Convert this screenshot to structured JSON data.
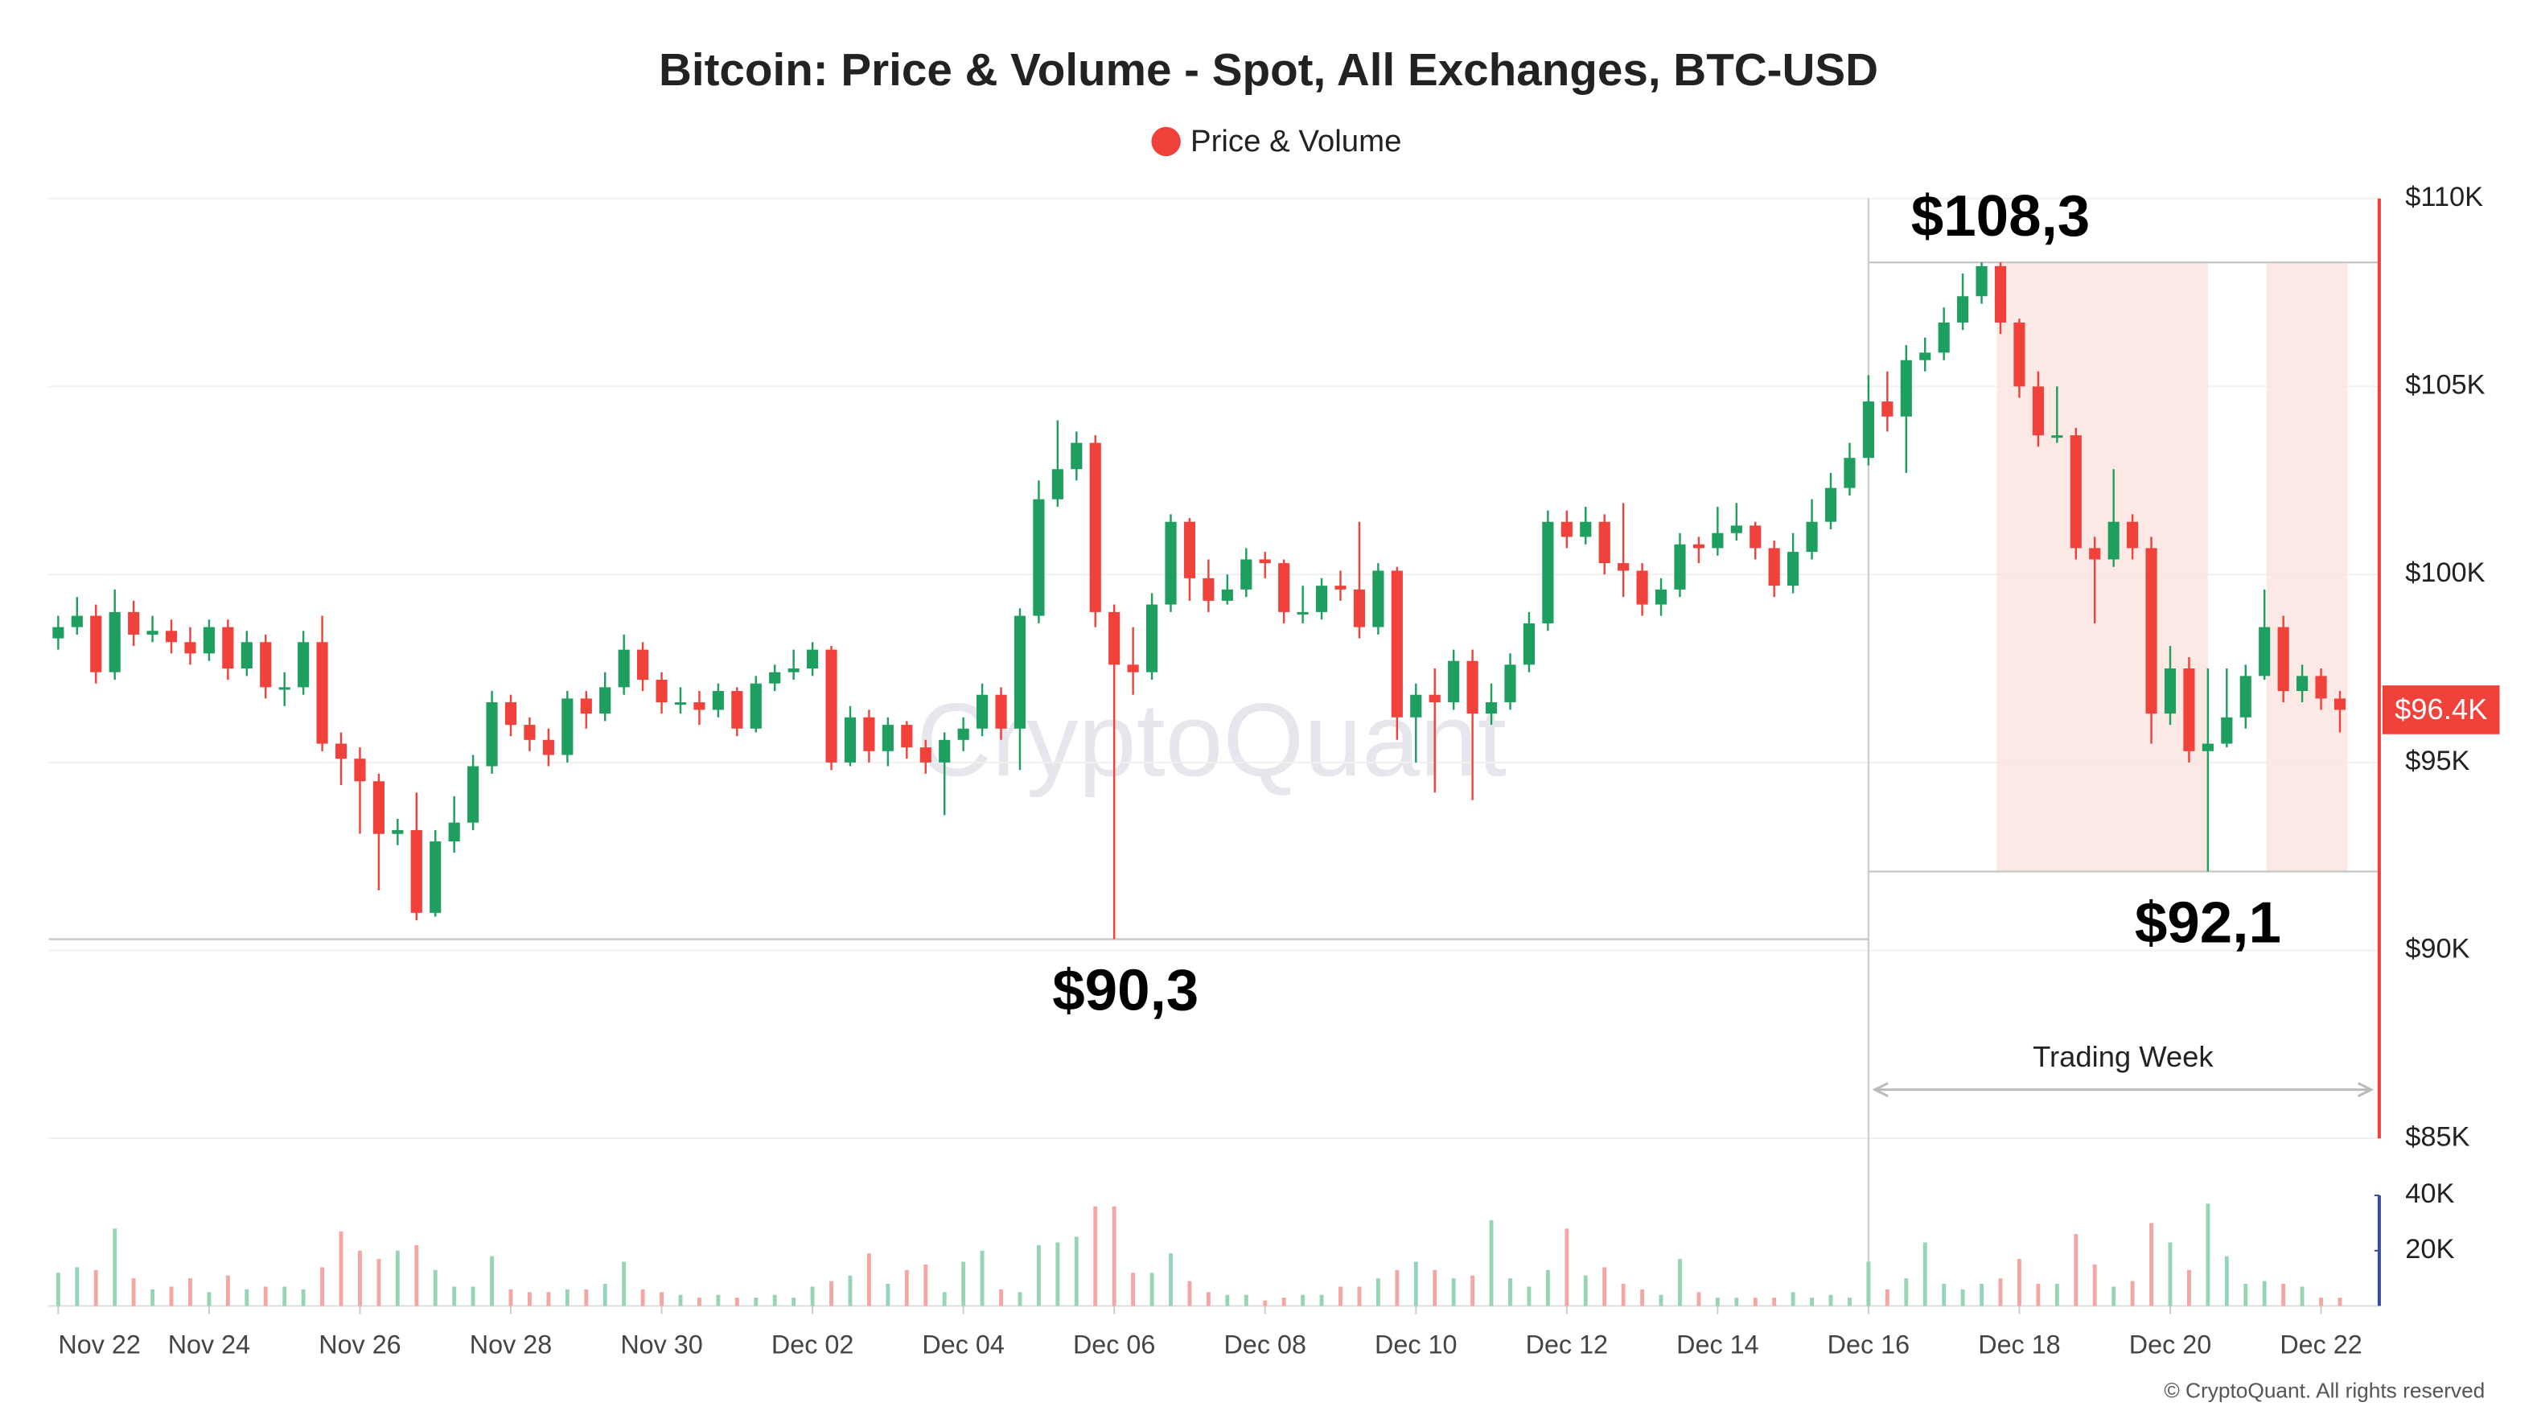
{
  "chart_data": {
    "type": "candlestick",
    "title": "Bitcoin: Price & Volume - Spot, All Exchanges, BTC-USD",
    "legend": {
      "name": "Price & Volume",
      "color": "#f0413a"
    },
    "up_color": "#1e9e5f",
    "down_color": "#f0413a",
    "volume_up_color": "#96d4b6",
    "volume_down_color": "#f5a5a3",
    "open": [
      98.3,
      98.6,
      98.9,
      97.4,
      99.0,
      98.4,
      98.5,
      98.2,
      97.9,
      98.6,
      97.5,
      98.2,
      97.0,
      97.0,
      98.2,
      95.5,
      95.1,
      94.5,
      93.1,
      93.2,
      91.0,
      92.9,
      93.4,
      94.9,
      96.6,
      96.0,
      95.6,
      95.2,
      96.7,
      96.3,
      97.0,
      98.0,
      97.2,
      96.6,
      96.6,
      96.4,
      96.9,
      95.9,
      97.1,
      97.4,
      97.5,
      98.0,
      95.0,
      96.2,
      95.3,
      96.0,
      95.4,
      95.0,
      95.6,
      95.9,
      96.8,
      95.9,
      98.9,
      102.0,
      102.8,
      103.5,
      99.0,
      97.6,
      97.4,
      99.2,
      101.4,
      99.9,
      99.3,
      99.6,
      100.4,
      100.3,
      99.0,
      99.0,
      99.7,
      99.6,
      98.6,
      100.1,
      96.2,
      96.8,
      96.6,
      97.7,
      96.3,
      96.6,
      97.6,
      98.7,
      101.4,
      101.0,
      101.4,
      100.3,
      100.1,
      99.2,
      99.6,
      100.8,
      100.7,
      101.1,
      101.3,
      100.7,
      99.7,
      100.6,
      101.4,
      102.3,
      103.1,
      104.6,
      104.2,
      105.7,
      105.9,
      106.7,
      107.4,
      108.2,
      106.7,
      105.0,
      103.7,
      103.7,
      100.7,
      100.4,
      101.4,
      100.7,
      96.3,
      97.5,
      95.3,
      95.5,
      96.2,
      97.3,
      98.6,
      96.9,
      97.3,
      96.7
    ],
    "high": [
      98.9,
      99.4,
      99.2,
      99.6,
      99.3,
      98.9,
      98.8,
      98.6,
      98.8,
      98.8,
      98.5,
      98.4,
      97.4,
      98.5,
      98.9,
      95.8,
      95.4,
      94.7,
      93.5,
      94.2,
      93.2,
      94.1,
      95.2,
      96.9,
      96.8,
      96.2,
      95.9,
      96.9,
      96.9,
      97.4,
      98.4,
      98.2,
      97.4,
      97.0,
      96.9,
      97.1,
      97.0,
      97.3,
      97.6,
      98.0,
      98.2,
      98.1,
      96.5,
      96.4,
      96.2,
      96.1,
      95.6,
      95.8,
      96.2,
      97.1,
      97.0,
      99.1,
      102.5,
      104.1,
      103.8,
      103.7,
      99.2,
      98.6,
      99.5,
      101.6,
      101.5,
      100.4,
      100.0,
      100.7,
      100.6,
      100.4,
      99.7,
      99.9,
      100.1,
      101.4,
      100.3,
      100.2,
      97.1,
      97.5,
      98.0,
      98.0,
      97.1,
      97.9,
      99.0,
      101.7,
      101.7,
      101.8,
      101.6,
      101.9,
      100.3,
      99.9,
      101.1,
      101.0,
      101.8,
      101.9,
      101.4,
      100.9,
      101.1,
      102.0,
      102.7,
      103.5,
      105.3,
      105.4,
      106.1,
      106.3,
      107.1,
      108.0,
      108.3,
      108.3,
      106.8,
      105.4,
      105.0,
      103.9,
      101.0,
      102.8,
      101.6,
      101.0,
      98.1,
      97.8,
      97.5,
      97.5,
      97.6,
      99.6,
      98.9,
      97.6,
      97.5,
      96.9
    ],
    "low": [
      98.0,
      98.4,
      97.1,
      97.2,
      98.1,
      98.2,
      97.9,
      97.6,
      97.7,
      97.2,
      97.3,
      96.7,
      96.5,
      96.8,
      95.3,
      94.4,
      93.1,
      91.6,
      92.8,
      90.8,
      90.9,
      92.6,
      93.2,
      94.7,
      95.7,
      95.3,
      94.9,
      95.0,
      95.9,
      96.1,
      96.8,
      96.9,
      96.3,
      96.3,
      96.0,
      96.2,
      95.7,
      95.8,
      96.9,
      97.2,
      97.3,
      94.8,
      94.9,
      95.0,
      94.9,
      95.1,
      94.7,
      93.6,
      95.3,
      95.7,
      95.6,
      94.8,
      98.7,
      101.8,
      102.5,
      98.6,
      90.3,
      96.8,
      97.2,
      99.0,
      99.3,
      99.0,
      99.2,
      99.4,
      99.9,
      98.7,
      98.7,
      98.8,
      99.3,
      98.3,
      98.4,
      95.6,
      95.0,
      94.2,
      96.4,
      94.0,
      96.0,
      96.4,
      97.4,
      98.5,
      100.7,
      100.8,
      100.0,
      99.4,
      98.9,
      98.9,
      99.4,
      100.3,
      100.5,
      100.9,
      100.4,
      99.4,
      99.5,
      100.4,
      101.2,
      102.1,
      102.9,
      103.8,
      102.7,
      105.4,
      105.7,
      106.5,
      107.2,
      106.4,
      104.7,
      103.4,
      103.5,
      100.4,
      98.7,
      100.2,
      100.4,
      95.5,
      96.0,
      95.0,
      92.1,
      95.4,
      95.9,
      97.2,
      96.6,
      96.6,
      96.4,
      95.8
    ],
    "close": [
      98.6,
      98.9,
      97.4,
      99.0,
      98.4,
      98.5,
      98.2,
      97.9,
      98.6,
      97.5,
      98.2,
      97.0,
      97.0,
      98.2,
      95.5,
      95.1,
      94.5,
      93.1,
      93.2,
      91.0,
      92.9,
      93.4,
      94.9,
      96.6,
      96.0,
      95.6,
      95.2,
      96.7,
      96.3,
      97.0,
      98.0,
      97.2,
      96.6,
      96.6,
      96.4,
      96.9,
      95.9,
      97.1,
      97.4,
      97.5,
      98.0,
      95.0,
      96.2,
      95.3,
      96.0,
      95.4,
      95.0,
      95.6,
      95.9,
      96.8,
      95.9,
      98.9,
      102.0,
      102.8,
      103.5,
      99.0,
      97.6,
      97.4,
      99.2,
      101.4,
      99.9,
      99.3,
      99.6,
      100.4,
      100.3,
      99.0,
      99.0,
      99.7,
      99.6,
      98.6,
      100.1,
      96.2,
      96.8,
      96.6,
      97.7,
      96.3,
      96.6,
      97.6,
      98.7,
      101.4,
      101.0,
      101.4,
      100.3,
      100.1,
      99.2,
      99.6,
      100.8,
      100.7,
      101.1,
      101.3,
      100.7,
      99.7,
      100.6,
      101.4,
      102.3,
      103.1,
      104.6,
      104.2,
      105.7,
      105.9,
      106.7,
      107.4,
      108.2,
      106.7,
      105.0,
      103.7,
      103.7,
      100.7,
      100.4,
      101.4,
      100.7,
      96.3,
      97.5,
      95.3,
      95.5,
      96.2,
      97.3,
      98.6,
      96.9,
      97.3,
      96.7,
      96.4
    ],
    "volume": [
      12,
      14,
      13,
      28,
      10,
      6,
      7,
      10,
      5,
      11,
      6,
      7,
      7,
      6,
      14,
      27,
      20,
      17,
      20,
      22,
      13,
      7,
      7,
      18,
      6,
      5,
      5,
      6,
      6,
      8,
      16,
      6,
      5,
      4,
      3,
      4,
      3,
      3,
      4,
      3,
      7,
      9,
      11,
      19,
      8,
      13,
      15,
      5,
      16,
      20,
      6,
      5,
      22,
      23,
      25,
      36,
      36,
      12,
      12,
      19,
      9,
      5,
      4,
      4,
      2,
      3,
      4,
      4,
      7,
      7,
      10,
      13,
      16,
      13,
      10,
      11,
      31,
      10,
      7,
      13,
      28,
      11,
      14,
      8,
      6,
      4,
      17,
      5,
      3,
      3,
      3,
      3,
      5,
      3,
      4,
      3,
      16,
      6,
      10,
      23,
      8,
      6,
      8,
      10,
      17,
      8,
      8,
      26,
      15,
      7,
      9,
      30,
      23,
      13,
      37,
      18,
      8,
      9,
      8,
      7,
      3,
      3
    ],
    "xlim": [
      -0.5,
      123
    ],
    "xticks": [
      {
        "value": 0,
        "label": "Nov 22"
      },
      {
        "value": 8,
        "label": "Nov 24"
      },
      {
        "value": 16,
        "label": "Nov 26"
      },
      {
        "value": 24,
        "label": "Nov 28"
      },
      {
        "value": 32,
        "label": "Nov 30"
      },
      {
        "value": 40,
        "label": "Dec 02"
      },
      {
        "value": 48,
        "label": "Dec 04"
      },
      {
        "value": 56,
        "label": "Dec 06"
      },
      {
        "value": 64,
        "label": "Dec 08"
      },
      {
        "value": 72,
        "label": "Dec 10"
      },
      {
        "value": 80,
        "label": "Dec 12"
      },
      {
        "value": 88,
        "label": "Dec 14"
      },
      {
        "value": 96,
        "label": "Dec 16"
      },
      {
        "value": 104,
        "label": "Dec 18"
      },
      {
        "value": 112,
        "label": "Dec 20"
      },
      {
        "value": 120,
        "label": "Dec 22"
      }
    ],
    "ylim": [
      85,
      110
    ],
    "yticks": [
      {
        "value": 110,
        "label": "$110K"
      },
      {
        "value": 105,
        "label": "$105K"
      },
      {
        "value": 100,
        "label": "$100K"
      },
      {
        "value": 95,
        "label": "$95K"
      },
      {
        "value": 90,
        "label": "$90K"
      },
      {
        "value": 85,
        "label": "$85K"
      }
    ],
    "volume_ylim": [
      0,
      40
    ],
    "volume_yticks": [
      {
        "value": 40,
        "label": "40K"
      },
      {
        "value": 20,
        "label": "20K"
      }
    ],
    "grid": true,
    "annotations": [
      {
        "label": "$108,3",
        "value": 108.3,
        "x": 103
      },
      {
        "label": "$90,3",
        "value": 90.3,
        "x": 56.6
      },
      {
        "label": "$92,1",
        "value": 92.1,
        "x": 114
      }
    ],
    "trading_week": {
      "label": "Trading Week",
      "from": 96,
      "to": 123
    },
    "shaded_ranges": [
      [
        102.8,
        114
      ],
      [
        117.1,
        121.4
      ]
    ],
    "last_label": "$96.4K",
    "watermark": "CryptoQuant",
    "copyright": "© CryptoQuant. All rights reserved"
  }
}
